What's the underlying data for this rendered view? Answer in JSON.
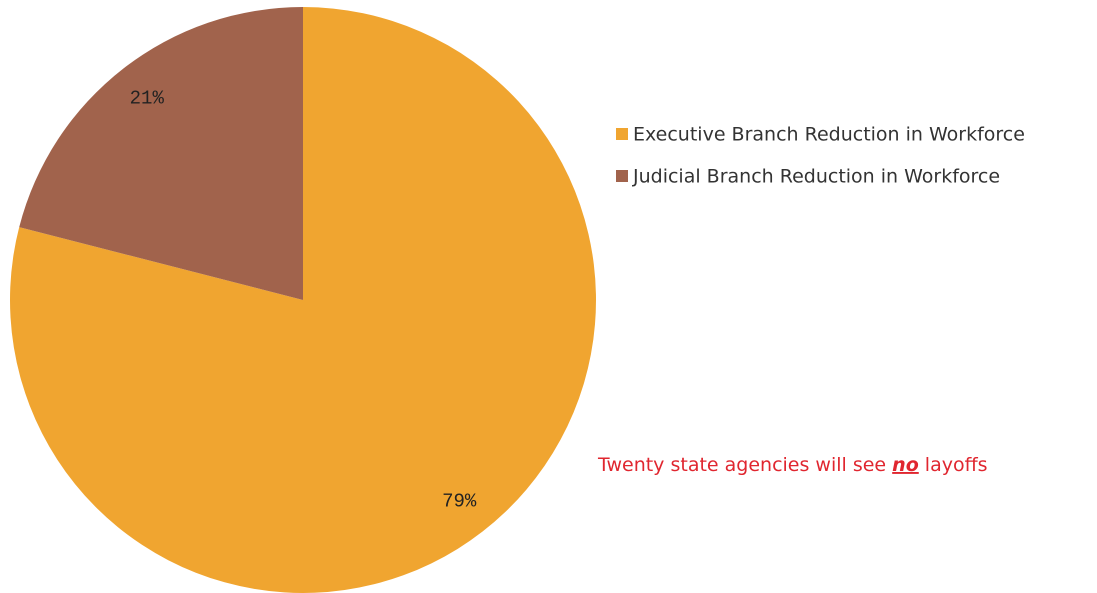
{
  "chart_data": {
    "type": "pie",
    "categories": [
      "Executive Branch Reduction in Workforce",
      "Judicial Branch Reduction in Workforce"
    ],
    "values": [
      79,
      21
    ],
    "value_labels": [
      "79%",
      "21%"
    ],
    "colors": [
      "#f0a530",
      "#a1634c"
    ],
    "annotation": [
      "Twenty state agencies will see ",
      "no",
      " layoffs"
    ]
  }
}
